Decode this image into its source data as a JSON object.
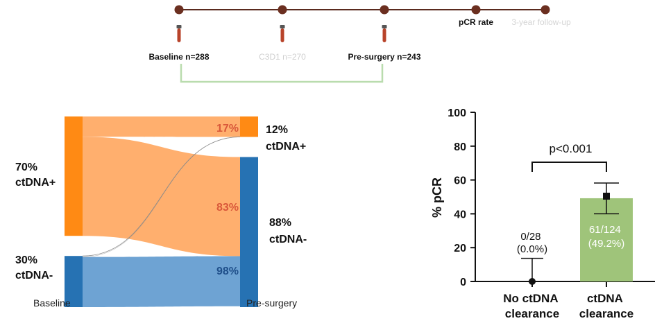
{
  "timeline": {
    "line_color": "#5a2a1e",
    "dot_color": "#6b2f20",
    "tube_color": "#b8432a",
    "bracket_color": "#b9dcae",
    "labels": {
      "baseline": "Baseline n=288",
      "c3d1": "C3D1 n=270",
      "presurgery": "Pre-surgery n=243",
      "pcr": "pCR rate",
      "followup": "3-year follow-up"
    }
  },
  "chart_data": [
    {
      "type": "sankey",
      "stages": [
        "Baseline",
        "Pre-surgery"
      ],
      "source_nodes": [
        {
          "id": "pos",
          "percent": 70,
          "label_lines": [
            "70%",
            "ctDNA+"
          ]
        },
        {
          "id": "neg",
          "percent": 30,
          "label_lines": [
            "30%",
            "ctDNA-"
          ]
        }
      ],
      "target_nodes": [
        {
          "id": "pos",
          "percent": 12,
          "label_lines": [
            "12%",
            "ctDNA+"
          ]
        },
        {
          "id": "neg",
          "percent": 88,
          "label_lines": [
            "88%",
            "ctDNA-"
          ]
        }
      ],
      "flows": [
        {
          "from": "pos",
          "to": "pos",
          "percent_of_source": 17,
          "label": "17%"
        },
        {
          "from": "pos",
          "to": "neg",
          "percent_of_source": 83,
          "label": "83%"
        },
        {
          "from": "neg",
          "to": "neg",
          "percent_of_source": 98,
          "label": "98%"
        }
      ],
      "colors": {
        "pos_node": "#ff8a14",
        "pos_flow": "#ffaf6e",
        "neg_node": "#2672b3",
        "neg_flow": "#6ea3d3",
        "pos_pct_text": "#d9583a",
        "neg_pct_text": "#1f4f8a",
        "minor_flow_line": "#8a8a8a"
      }
    },
    {
      "type": "bar",
      "categories": [
        [
          "No ctDNA",
          "clearance"
        ],
        [
          "ctDNA",
          "clearance"
        ]
      ],
      "values": [
        0.0,
        49.2
      ],
      "error_low": [
        0,
        40
      ],
      "error_high": [
        13.7,
        58.2
      ],
      "bar_labels": [
        [
          "0/28",
          "(0.0%)"
        ],
        [
          "61/124",
          "(49.2%)"
        ]
      ],
      "ylabel": "% pCR",
      "ylim": [
        0,
        100
      ],
      "yticks": [
        0,
        20,
        40,
        60,
        80,
        100
      ],
      "annotation": "p<0.001",
      "bar_color": "#9fc47a",
      "bar_text_color": "#ffffff"
    }
  ]
}
